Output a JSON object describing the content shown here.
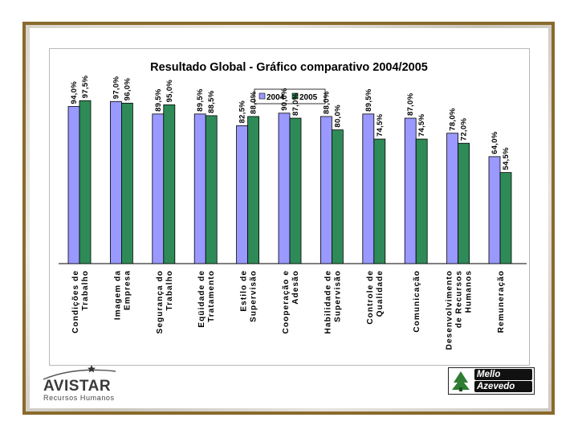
{
  "colors": {
    "series_2004": "#9999ff",
    "series_2005": "#2e8b57",
    "frame_border": "#8a6a2c"
  },
  "chart_data": {
    "type": "bar",
    "title": "Resultado Global - Gráfico comparativo 2004/2005",
    "legend_position": "top-center",
    "grid": false,
    "ylim": [
      0,
      100
    ],
    "categories": [
      [
        "Condições de",
        "Trabalho"
      ],
      [
        "Imagem da",
        "Empresa"
      ],
      [
        "Segurança do",
        "Trabalho"
      ],
      [
        "Eqüidade de",
        "Tratamento"
      ],
      [
        "Estilo de",
        "Supervisão"
      ],
      [
        "Cooperação e",
        "Adesão"
      ],
      [
        "Habilidade de",
        "Supervisão"
      ],
      [
        "Controle de",
        "Qualidade"
      ],
      [
        "Comunicação"
      ],
      [
        "Desenvolvimento",
        "de Recursos",
        "Humanos"
      ],
      [
        "Remuneração"
      ]
    ],
    "series": [
      {
        "name": "2004",
        "values": [
          94.0,
          97.0,
          89.5,
          89.5,
          82.5,
          90.0,
          88.0,
          89.5,
          87.0,
          78.0,
          64.0
        ],
        "labels": [
          "94,0%",
          "97,0%",
          "89,5%",
          "89,5%",
          "82,5%",
          "90,0%",
          "88,0%",
          "89,5%",
          "87,0%",
          "78,0%",
          "64,0%"
        ]
      },
      {
        "name": "2005",
        "values": [
          97.5,
          96.0,
          95.0,
          88.5,
          88.0,
          87.0,
          80.0,
          74.5,
          74.5,
          72.0,
          54.5
        ],
        "labels": [
          "97,5%",
          "96,0%",
          "95,0%",
          "88,5%",
          "88,0%",
          "87,0%",
          "80,0%",
          "74,5%",
          "74,5%",
          "72,0%",
          "54,5%"
        ]
      }
    ]
  },
  "logos": {
    "left": {
      "brand": "AVISTAR",
      "subtitle": "Recursos Humanos"
    },
    "right": {
      "line1": "Mello",
      "line2": "Azevedo"
    }
  }
}
